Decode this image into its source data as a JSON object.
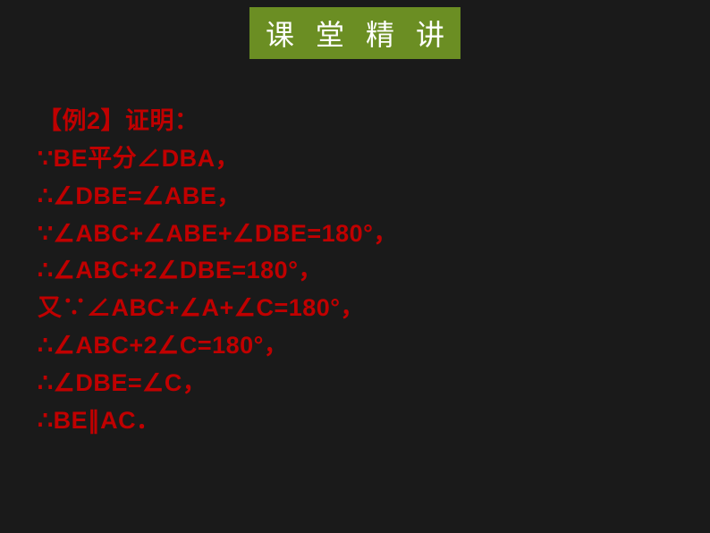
{
  "header": {
    "chars": [
      "课",
      "堂",
      "精",
      "讲"
    ],
    "bg_color": "#6b8e23",
    "text_color": "#ffffff",
    "fontsize": 32
  },
  "content": {
    "text_color": "#c00000",
    "fontsize": 27,
    "lines": [
      "【例2】证明：",
      "∵BE平分∠DBA，",
      "∴∠DBE=∠ABE，",
      "∵∠ABC+∠ABE+∠DBE=180°，",
      "∴∠ABC+2∠DBE=180°，",
      "又∵∠ABC+∠A+∠C=180°，",
      "∴∠ABC+2∠C=180°，",
      "∴∠DBE=∠C，",
      "∴BE∥AC．"
    ]
  },
  "background_color": "#1a1a1a"
}
